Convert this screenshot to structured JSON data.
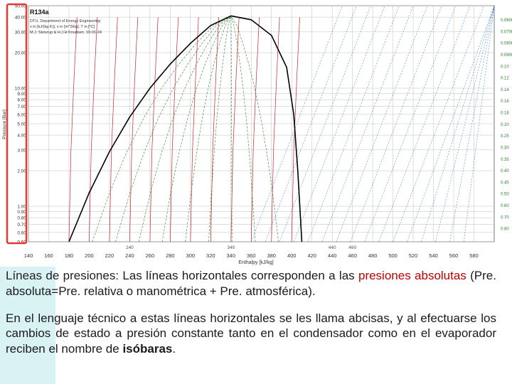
{
  "chart_data": {
    "type": "line",
    "title": "R134a",
    "header_lines": [
      "DTU, Department of Energy Engineering",
      "s in [kJ/(kg K)]. v in [m^3/kg]. T in [ºC]",
      "M.J. Skovrup & H.J.H Knudsen. 19-01-24"
    ],
    "xlabel": "Enthalpy [kJ/kg]",
    "ylabel": "Pressure [Bar]",
    "x_ticks": [
      "140",
      "160",
      "180",
      "200",
      "220",
      "240",
      "260",
      "280",
      "300",
      "320",
      "340",
      "360",
      "380",
      "400",
      "420",
      "440",
      "460",
      "480",
      "500",
      "520",
      "540",
      "560",
      "580"
    ],
    "x_ticks_lower": [
      "240",
      "340",
      "440",
      "460"
    ],
    "y_ticks": [
      "50.00",
      "40.00",
      "30.00",
      "20.00",
      "10.00",
      "9.00",
      "8.00",
      "7.00",
      "6.00",
      "5.00",
      "4.00",
      "3.00",
      "2.00",
      "1.00",
      "0.90",
      "0.80",
      "0.70",
      "0.60",
      "0.50"
    ],
    "y_scale": "log",
    "xlim": [
      140,
      600
    ],
    "ylim": [
      0.5,
      50
    ],
    "right_labels": [
      "0.0600",
      "0.0700",
      "0.0800",
      "0.0900",
      "0.10",
      "0.12",
      "0.14",
      "0.16",
      "0.18",
      "0.20",
      "0.25",
      "0.30",
      "0.35",
      "0.40",
      "0.45",
      "0.50",
      "0.60",
      "0.70",
      "0.80"
    ],
    "saturation_liquid": [
      {
        "h": 180,
        "p": 0.5
      },
      {
        "h": 200,
        "p": 1.3
      },
      {
        "h": 220,
        "p": 2.9
      },
      {
        "h": 240,
        "p": 5.7
      },
      {
        "h": 260,
        "p": 10.0
      },
      {
        "h": 280,
        "p": 16.0
      },
      {
        "h": 300,
        "p": 24.0
      },
      {
        "h": 320,
        "p": 34.0
      },
      {
        "h": 340,
        "p": 41.0
      }
    ],
    "saturation_vapor": [
      {
        "h": 340,
        "p": 41.0
      },
      {
        "h": 360,
        "p": 38.0
      },
      {
        "h": 380,
        "p": 28.0
      },
      {
        "h": 395,
        "p": 15.0
      },
      {
        "h": 402,
        "p": 6.0
      },
      {
        "h": 406,
        "p": 2.0
      },
      {
        "h": 410,
        "p": 0.5
      }
    ],
    "grid": true,
    "highlight_color": "#e53935",
    "curve_color": "#000000",
    "isotherm_color": "#c62828",
    "isentrope_color": "#1565c0",
    "quality_color": "#2e7d32",
    "grid_color": "#bfbfbf"
  },
  "text": {
    "p1_term": "Líneas de presiones:",
    "p1_a": " Las líneas horizontales corresponden a las ",
    "p1_b": "presiones absolutas",
    "p1_c": " (Pre. absoluta=Pre. relativa o manométrica + Pre. atmosférica).",
    "p2_a": "En el lenguaje técnico a estas líneas horizontales se les llama abcisas, y al efectuarse los cambios de estado a presión constante tanto en el condensador como en el evaporador reciben el nombre de ",
    "p2_b": "isóbaras",
    "p2_c": "."
  }
}
